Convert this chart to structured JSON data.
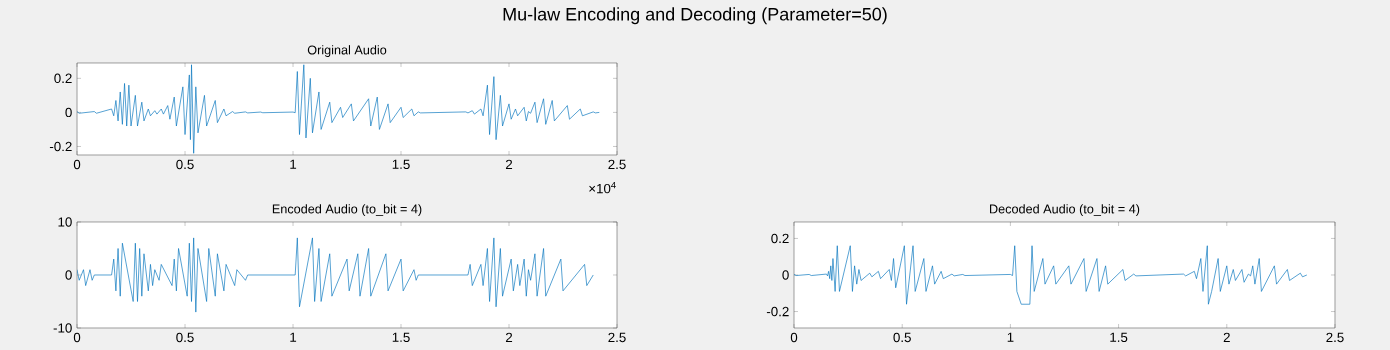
{
  "chart_data": [
    {
      "type": "line",
      "title": "Original Audio",
      "annotations": [
        "Mu-law Encoding and Decoding (Parameter=50)",
        "×10$^{4}$"
      ],
      "xlim": [
        0,
        2.5
      ],
      "xticks": [
        0,
        0.5,
        1,
        1.5,
        2,
        2.5
      ],
      "ylim": [
        -0.25,
        0.29
      ],
      "yticks": [
        -0.2,
        0,
        0.2
      ],
      "grid": false,
      "marker": "none",
      "line_style": "solid",
      "series": [
        {
          "color": "#0072bd",
          "x": [
            0,
            0.01,
            0.08,
            0.09,
            0.16,
            0.17,
            0.18,
            0.19,
            0.2,
            0.21,
            0.22,
            0.23,
            0.24,
            0.25,
            0.27,
            0.28,
            0.3,
            0.31,
            0.33,
            0.34,
            0.36,
            0.37,
            0.39,
            0.4,
            0.42,
            0.43,
            0.45,
            0.46,
            0.49,
            0.5,
            0.52,
            0.525,
            0.53,
            0.54,
            0.55,
            0.56,
            0.59,
            0.6,
            0.64,
            0.65,
            0.68,
            0.69,
            0.72,
            0.73,
            0.78,
            0.79,
            0.85,
            0.86,
            1,
            1.01,
            1.02,
            1.03,
            1.05,
            1.06,
            1.08,
            1.09,
            1.12,
            1.13,
            1.17,
            1.18,
            1.22,
            1.23,
            1.27,
            1.28,
            1.35,
            1.36,
            1.39,
            1.4,
            1.44,
            1.45,
            1.5,
            1.51,
            1.55,
            1.56,
            1.58,
            1.59,
            1.8,
            1.81,
            1.83,
            1.84,
            1.87,
            1.88,
            1.9,
            1.91,
            1.93,
            1.94,
            1.96,
            1.97,
            2,
            2.01,
            2.03,
            2.04,
            2.07,
            2.08,
            2.09,
            2.1,
            2.12,
            2.13,
            2.16,
            2.17,
            2.2,
            2.21,
            2.27,
            2.28,
            2.33,
            2.34,
            2.39,
            2.4,
            2.418
          ],
          "values": [
            0.005,
            -0.005,
            0.005,
            -0.005,
            0.02,
            -0.02,
            0.07,
            -0.05,
            0.12,
            -0.07,
            0.17,
            -0.08,
            0.16,
            -0.08,
            0.1,
            -0.08,
            0.06,
            -0.05,
            0.02,
            -0.02,
            0.01,
            -0.01,
            0.02,
            -0.01,
            0.04,
            -0.04,
            0.09,
            -0.08,
            0.15,
            -0.13,
            0.22,
            -0.16,
            0.28,
            -0.24,
            0.15,
            -0.12,
            0.1,
            -0.08,
            0.07,
            -0.06,
            0.02,
            -0.02,
            0.005,
            -0.005,
            0.003,
            -0.003,
            0.002,
            -0.002,
            0.002,
            -0.002,
            0.24,
            -0.13,
            0.28,
            -0.15,
            0.2,
            -0.12,
            0.12,
            -0.1,
            0.06,
            -0.06,
            0.03,
            -0.03,
            0.05,
            -0.05,
            0.08,
            -0.08,
            0.09,
            -0.1,
            0.05,
            -0.06,
            0.03,
            -0.03,
            0.02,
            -0.02,
            0.003,
            -0.003,
            0.003,
            -0.003,
            0.01,
            -0.01,
            0.02,
            -0.02,
            0.16,
            -0.13,
            0.21,
            -0.16,
            0.1,
            -0.08,
            0.05,
            -0.04,
            0.02,
            -0.02,
            0.03,
            -0.05,
            0.005,
            -0.005,
            0.06,
            -0.06,
            0.08,
            -0.07,
            0.07,
            -0.05,
            0.04,
            -0.04,
            0.02,
            -0.02,
            0.003,
            -0.003,
            0
          ]
        }
      ]
    },
    {
      "type": "line",
      "title": "Encoded Audio (to_bit = 4)",
      "xlim": [
        0,
        2.5
      ],
      "xticks": [
        0,
        0.5,
        1,
        1.5,
        2,
        2.5
      ],
      "ylim": [
        -10,
        10
      ],
      "yticks": [
        -10,
        0,
        10
      ],
      "grid": false,
      "marker": "none",
      "line_style": "solid",
      "series": [
        {
          "color": "#0072bd",
          "x": [
            0,
            0.01,
            0.03,
            0.04,
            0.06,
            0.07,
            0.08,
            0.16,
            0.17,
            0.18,
            0.19,
            0.2,
            0.21,
            0.26,
            0.27,
            0.28,
            0.29,
            0.3,
            0.31,
            0.33,
            0.34,
            0.35,
            0.36,
            0.38,
            0.39,
            0.44,
            0.45,
            0.46,
            0.47,
            0.51,
            0.52,
            0.53,
            0.54,
            0.55,
            0.56,
            0.6,
            0.61,
            0.64,
            0.65,
            0.68,
            0.69,
            0.73,
            0.74,
            0.78,
            0.79,
            1.01,
            1.02,
            1.03,
            1.09,
            1.1,
            1.12,
            1.13,
            1.17,
            1.18,
            1.25,
            1.26,
            1.3,
            1.31,
            1.35,
            1.36,
            1.43,
            1.44,
            1.5,
            1.51,
            1.56,
            1.57,
            1.58,
            1.81,
            1.82,
            1.83,
            1.87,
            1.88,
            1.9,
            1.91,
            1.93,
            1.94,
            1.96,
            1.97,
            2.01,
            2.02,
            2.04,
            2.05,
            2.07,
            2.08,
            2.09,
            2.1,
            2.12,
            2.13,
            2.16,
            2.17,
            2.24,
            2.25,
            2.35,
            2.36,
            2.39
          ],
          "values": [
            1,
            -1,
            1,
            -2,
            1,
            -1,
            0,
            0,
            3,
            -3,
            5,
            -4,
            6,
            -5,
            6,
            -5,
            5,
            -4,
            4,
            -3,
            2,
            -2,
            1,
            -1,
            2,
            -2,
            3,
            -3,
            5,
            -4,
            6,
            -5,
            7,
            -7,
            5,
            -5,
            5,
            -4,
            4,
            -3,
            2,
            -2,
            1,
            -1,
            0,
            0,
            7,
            -6,
            7,
            -5,
            5,
            -5,
            4,
            -4,
            3,
            -3,
            4,
            -4,
            5,
            -4,
            4,
            -3,
            3,
            -3,
            1,
            -1,
            0,
            0,
            2,
            -2,
            2,
            -2,
            5,
            -5,
            7,
            -6,
            5,
            -4,
            3,
            -3,
            2,
            -2,
            3,
            -4,
            1,
            -1,
            4,
            -4,
            5,
            -4,
            3,
            -3,
            2,
            -2,
            0
          ]
        }
      ]
    },
    {
      "type": "line",
      "title": "Decoded Audio (to_bit = 4)",
      "xlim": [
        0,
        2.5
      ],
      "xticks": [
        0,
        0.5,
        1,
        1.5,
        2,
        2.5
      ],
      "ylim": [
        -0.29,
        0.29
      ],
      "yticks": [
        -0.2,
        0,
        0.2
      ],
      "grid": false,
      "marker": "none",
      "line_style": "solid",
      "series": [
        {
          "color": "#0072bd",
          "x": [
            0,
            0.01,
            0.07,
            0.08,
            0.15,
            0.155,
            0.16,
            0.165,
            0.17,
            0.175,
            0.18,
            0.19,
            0.2,
            0.21,
            0.26,
            0.27,
            0.28,
            0.29,
            0.3,
            0.31,
            0.35,
            0.36,
            0.39,
            0.4,
            0.44,
            0.45,
            0.46,
            0.47,
            0.51,
            0.52,
            0.53,
            0.535,
            0.55,
            0.56,
            0.6,
            0.61,
            0.64,
            0.65,
            0.68,
            0.69,
            0.73,
            0.74,
            0.78,
            0.79,
            1,
            1.01,
            1.02,
            1.03,
            1.04,
            1.05,
            1.08,
            1.09,
            1.1,
            1.11,
            1.15,
            1.16,
            1.2,
            1.21,
            1.27,
            1.28,
            1.34,
            1.35,
            1.4,
            1.41,
            1.44,
            1.45,
            1.52,
            1.53,
            1.57,
            1.58,
            1.8,
            1.81,
            1.85,
            1.86,
            1.88,
            1.89,
            1.91,
            1.915,
            1.92,
            1.93,
            1.96,
            1.97,
            2,
            2.01,
            2.03,
            2.04,
            2.07,
            2.08,
            2.1,
            2.11,
            2.12,
            2.13,
            2.15,
            2.16,
            2.22,
            2.23,
            2.28,
            2.29,
            2.34,
            2.35,
            2.37
          ],
          "values": [
            0.003,
            -0.003,
            0.003,
            -0.003,
            0.005,
            -0.005,
            0.02,
            -0.02,
            0.05,
            -0.03,
            0.09,
            -0.09,
            0.16,
            -0.09,
            0.16,
            -0.09,
            0.05,
            -0.05,
            0.03,
            -0.03,
            0.01,
            -0.01,
            0.02,
            -0.02,
            0.03,
            -0.03,
            0.09,
            -0.07,
            0.16,
            -0.16,
            null,
            null,
            0.16,
            -0.09,
            0.09,
            -0.09,
            0.05,
            -0.05,
            0.02,
            -0.02,
            0.005,
            -0.005,
            0.003,
            -0.003,
            0.003,
            -0.003,
            0.16,
            -0.09,
            null,
            -0.16,
            null,
            -0.16,
            0.16,
            -0.09,
            0.09,
            -0.05,
            0.05,
            -0.05,
            0.05,
            -0.05,
            0.09,
            -0.09,
            0.09,
            -0.09,
            0.05,
            -0.05,
            0.03,
            -0.03,
            0.005,
            -0.005,
            0.005,
            -0.005,
            0.02,
            -0.02,
            0.09,
            -0.09,
            0.16,
            -0.16,
            null,
            -0.09,
            0.09,
            -0.09,
            0.05,
            -0.05,
            0.03,
            -0.03,
            0.03,
            -0.04,
            0.005,
            -0.005,
            0.05,
            -0.05,
            0.09,
            -0.09,
            0.05,
            -0.05,
            0.03,
            -0.03,
            0.01,
            -0.01,
            0
          ]
        }
      ]
    }
  ]
}
